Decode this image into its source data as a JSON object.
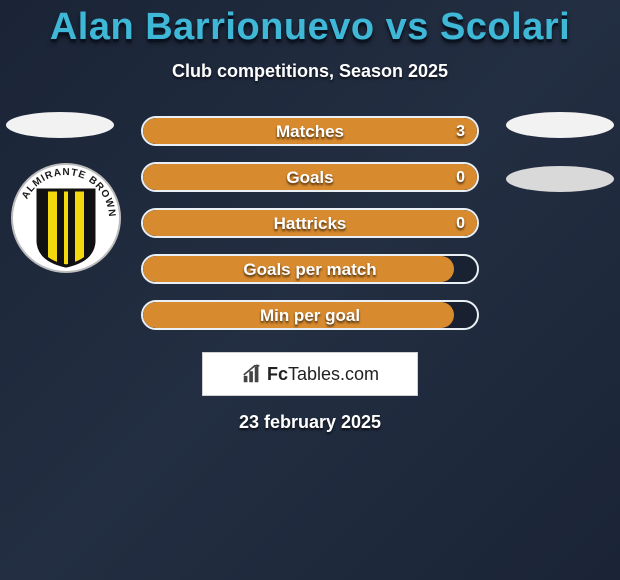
{
  "title": "Alan Barrionuevo vs Scolari",
  "subtitle": "Club competitions, Season 2025",
  "date": "23 february 2025",
  "colors": {
    "title": "#3fb8d8",
    "text": "#ffffff",
    "bg_gradient_from": "#1a2436",
    "bg_gradient_to": "#1a2436",
    "bar_fill": "#d88a2e",
    "bar_border": "#e9f0f5",
    "oval_light": "#f2f2f2",
    "oval_dark": "#d9d9d9",
    "logo_box_bg": "#ffffff",
    "logo_box_border": "#d0d0d0"
  },
  "bars": [
    {
      "label": "Matches",
      "left": "",
      "right": "3",
      "fill_pct": 100
    },
    {
      "label": "Goals",
      "left": "",
      "right": "0",
      "fill_pct": 100
    },
    {
      "label": "Hattricks",
      "left": "",
      "right": "0",
      "fill_pct": 100
    },
    {
      "label": "Goals per match",
      "left": "",
      "right": "",
      "fill_pct": 93
    },
    {
      "label": "Min per goal",
      "left": "",
      "right": "",
      "fill_pct": 93
    }
  ],
  "logo": {
    "brand_a": "Fc",
    "brand_b": "Tables",
    "brand_c": ".com"
  },
  "club_badge": {
    "ring_text": "ALMIRANTE BROWN",
    "ring_bg": "#ffffff",
    "ring_text_color": "#1a1a1a",
    "shield_border": "#111111",
    "stripe_yellow": "#f4d90f",
    "stripe_black": "#111111"
  }
}
